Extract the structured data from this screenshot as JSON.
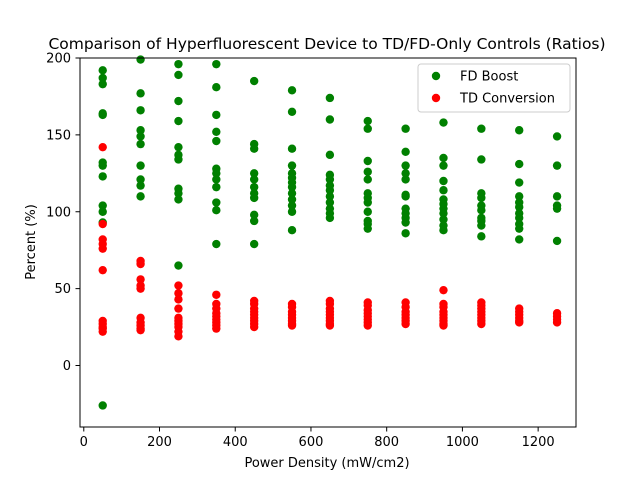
{
  "chart_data": {
    "type": "scatter",
    "title": "Comparison of Hyperfluorescent Device to TD/FD-Only Controls (Ratios)",
    "xlabel": "Power Density (mW/cm2)",
    "ylabel": "Percent (%)",
    "xlim": [
      -10,
      1300
    ],
    "ylim": [
      -40,
      200
    ],
    "xticks": [
      0,
      200,
      400,
      600,
      800,
      1000,
      1200
    ],
    "yticks": [
      0,
      50,
      100,
      150,
      200
    ],
    "grid": false,
    "legend_position": "upper-right",
    "series": [
      {
        "name": "FD Boost",
        "color": "#008000",
        "points": [
          [
            50,
            192
          ],
          [
            50,
            187
          ],
          [
            50,
            183
          ],
          [
            50,
            164
          ],
          [
            50,
            163
          ],
          [
            50,
            132
          ],
          [
            50,
            130
          ],
          [
            50,
            123
          ],
          [
            50,
            104
          ],
          [
            50,
            100
          ],
          [
            50,
            93
          ],
          [
            50,
            -26
          ],
          [
            150,
            199
          ],
          [
            150,
            177
          ],
          [
            150,
            166
          ],
          [
            150,
            153
          ],
          [
            150,
            149
          ],
          [
            150,
            144
          ],
          [
            150,
            130
          ],
          [
            150,
            121
          ],
          [
            150,
            117
          ],
          [
            150,
            110
          ],
          [
            250,
            196
          ],
          [
            250,
            189
          ],
          [
            250,
            172
          ],
          [
            250,
            159
          ],
          [
            250,
            142
          ],
          [
            250,
            137
          ],
          [
            250,
            134
          ],
          [
            250,
            115
          ],
          [
            250,
            112
          ],
          [
            250,
            108
          ],
          [
            250,
            65
          ],
          [
            350,
            196
          ],
          [
            350,
            181
          ],
          [
            350,
            163
          ],
          [
            350,
            152
          ],
          [
            350,
            146
          ],
          [
            350,
            128
          ],
          [
            350,
            125
          ],
          [
            350,
            121
          ],
          [
            350,
            116
          ],
          [
            350,
            106
          ],
          [
            350,
            101
          ],
          [
            350,
            79
          ],
          [
            450,
            185
          ],
          [
            450,
            144
          ],
          [
            450,
            141
          ],
          [
            450,
            125
          ],
          [
            450,
            121
          ],
          [
            450,
            116
          ],
          [
            450,
            112
          ],
          [
            450,
            109
          ],
          [
            450,
            98
          ],
          [
            450,
            94
          ],
          [
            450,
            79
          ],
          [
            550,
            179
          ],
          [
            550,
            165
          ],
          [
            550,
            141
          ],
          [
            550,
            130
          ],
          [
            550,
            125
          ],
          [
            550,
            122
          ],
          [
            550,
            119
          ],
          [
            550,
            116
          ],
          [
            550,
            112
          ],
          [
            550,
            108
          ],
          [
            550,
            104
          ],
          [
            550,
            100
          ],
          [
            550,
            88
          ],
          [
            650,
            174
          ],
          [
            650,
            160
          ],
          [
            650,
            137
          ],
          [
            650,
            124
          ],
          [
            650,
            121
          ],
          [
            650,
            117
          ],
          [
            650,
            114
          ],
          [
            650,
            110
          ],
          [
            650,
            106
          ],
          [
            650,
            102
          ],
          [
            650,
            99
          ],
          [
            650,
            96
          ],
          [
            750,
            159
          ],
          [
            750,
            154
          ],
          [
            750,
            133
          ],
          [
            750,
            126
          ],
          [
            750,
            121
          ],
          [
            750,
            112
          ],
          [
            750,
            109
          ],
          [
            750,
            106
          ],
          [
            750,
            100
          ],
          [
            750,
            94
          ],
          [
            750,
            92
          ],
          [
            750,
            89
          ],
          [
            850,
            154
          ],
          [
            850,
            139
          ],
          [
            850,
            130
          ],
          [
            850,
            125
          ],
          [
            850,
            121
          ],
          [
            850,
            111
          ],
          [
            850,
            110
          ],
          [
            850,
            102
          ],
          [
            850,
            99
          ],
          [
            850,
            96
          ],
          [
            850,
            93
          ],
          [
            850,
            86
          ],
          [
            950,
            158
          ],
          [
            950,
            135
          ],
          [
            950,
            130
          ],
          [
            950,
            120
          ],
          [
            950,
            114
          ],
          [
            950,
            108
          ],
          [
            950,
            105
          ],
          [
            950,
            102
          ],
          [
            950,
            99
          ],
          [
            950,
            95
          ],
          [
            950,
            91
          ],
          [
            950,
            88
          ],
          [
            1050,
            154
          ],
          [
            1050,
            134
          ],
          [
            1050,
            112
          ],
          [
            1050,
            109
          ],
          [
            1050,
            104
          ],
          [
            1050,
            101
          ],
          [
            1050,
            96
          ],
          [
            1050,
            94
          ],
          [
            1050,
            91
          ],
          [
            1050,
            84
          ],
          [
            1150,
            153
          ],
          [
            1150,
            131
          ],
          [
            1150,
            119
          ],
          [
            1150,
            110
          ],
          [
            1150,
            106
          ],
          [
            1150,
            103
          ],
          [
            1150,
            99
          ],
          [
            1150,
            96
          ],
          [
            1150,
            92
          ],
          [
            1150,
            89
          ],
          [
            1150,
            82
          ],
          [
            1250,
            149
          ],
          [
            1250,
            130
          ],
          [
            1250,
            110
          ],
          [
            1250,
            104
          ],
          [
            1250,
            102
          ],
          [
            1250,
            81
          ]
        ]
      },
      {
        "name": "TD Conversion",
        "color": "#ff0000",
        "points": [
          [
            50,
            142
          ],
          [
            50,
            92
          ],
          [
            50,
            82
          ],
          [
            50,
            79
          ],
          [
            50,
            76
          ],
          [
            50,
            62
          ],
          [
            50,
            29
          ],
          [
            50,
            27
          ],
          [
            50,
            25
          ],
          [
            50,
            24
          ],
          [
            50,
            22
          ],
          [
            150,
            68
          ],
          [
            150,
            66
          ],
          [
            150,
            56
          ],
          [
            150,
            52
          ],
          [
            150,
            50
          ],
          [
            150,
            31
          ],
          [
            150,
            28
          ],
          [
            150,
            26
          ],
          [
            150,
            24
          ],
          [
            150,
            23
          ],
          [
            250,
            52
          ],
          [
            250,
            47
          ],
          [
            250,
            43
          ],
          [
            250,
            37
          ],
          [
            250,
            31
          ],
          [
            250,
            29
          ],
          [
            250,
            27
          ],
          [
            250,
            25
          ],
          [
            250,
            22
          ],
          [
            250,
            19
          ],
          [
            350,
            46
          ],
          [
            350,
            40
          ],
          [
            350,
            37
          ],
          [
            350,
            34
          ],
          [
            350,
            32
          ],
          [
            350,
            30
          ],
          [
            350,
            28
          ],
          [
            350,
            26
          ],
          [
            350,
            24
          ],
          [
            450,
            42
          ],
          [
            450,
            40
          ],
          [
            450,
            37
          ],
          [
            450,
            35
          ],
          [
            450,
            33
          ],
          [
            450,
            31
          ],
          [
            450,
            29
          ],
          [
            450,
            27
          ],
          [
            450,
            25
          ],
          [
            550,
            40
          ],
          [
            550,
            38
          ],
          [
            550,
            35
          ],
          [
            550,
            33
          ],
          [
            550,
            31
          ],
          [
            550,
            29
          ],
          [
            550,
            27
          ],
          [
            550,
            26
          ],
          [
            650,
            42
          ],
          [
            650,
            40
          ],
          [
            650,
            37
          ],
          [
            650,
            35
          ],
          [
            650,
            33
          ],
          [
            650,
            31
          ],
          [
            650,
            29
          ],
          [
            650,
            27
          ],
          [
            650,
            26
          ],
          [
            750,
            41
          ],
          [
            750,
            39
          ],
          [
            750,
            36
          ],
          [
            750,
            34
          ],
          [
            750,
            32
          ],
          [
            750,
            30
          ],
          [
            750,
            28
          ],
          [
            750,
            26
          ],
          [
            850,
            41
          ],
          [
            850,
            38
          ],
          [
            850,
            35
          ],
          [
            850,
            33
          ],
          [
            850,
            31
          ],
          [
            850,
            29
          ],
          [
            850,
            27
          ],
          [
            950,
            49
          ],
          [
            950,
            40
          ],
          [
            950,
            38
          ],
          [
            950,
            35
          ],
          [
            950,
            33
          ],
          [
            950,
            31
          ],
          [
            950,
            29
          ],
          [
            950,
            27
          ],
          [
            950,
            26
          ],
          [
            1050,
            41
          ],
          [
            1050,
            39
          ],
          [
            1050,
            37
          ],
          [
            1050,
            35
          ],
          [
            1050,
            33
          ],
          [
            1050,
            31
          ],
          [
            1050,
            29
          ],
          [
            1050,
            27
          ],
          [
            1150,
            37
          ],
          [
            1150,
            35
          ],
          [
            1150,
            33
          ],
          [
            1150,
            31
          ],
          [
            1150,
            29
          ],
          [
            1150,
            28
          ],
          [
            1250,
            34
          ],
          [
            1250,
            32
          ],
          [
            1250,
            30
          ],
          [
            1250,
            28
          ]
        ]
      }
    ]
  }
}
